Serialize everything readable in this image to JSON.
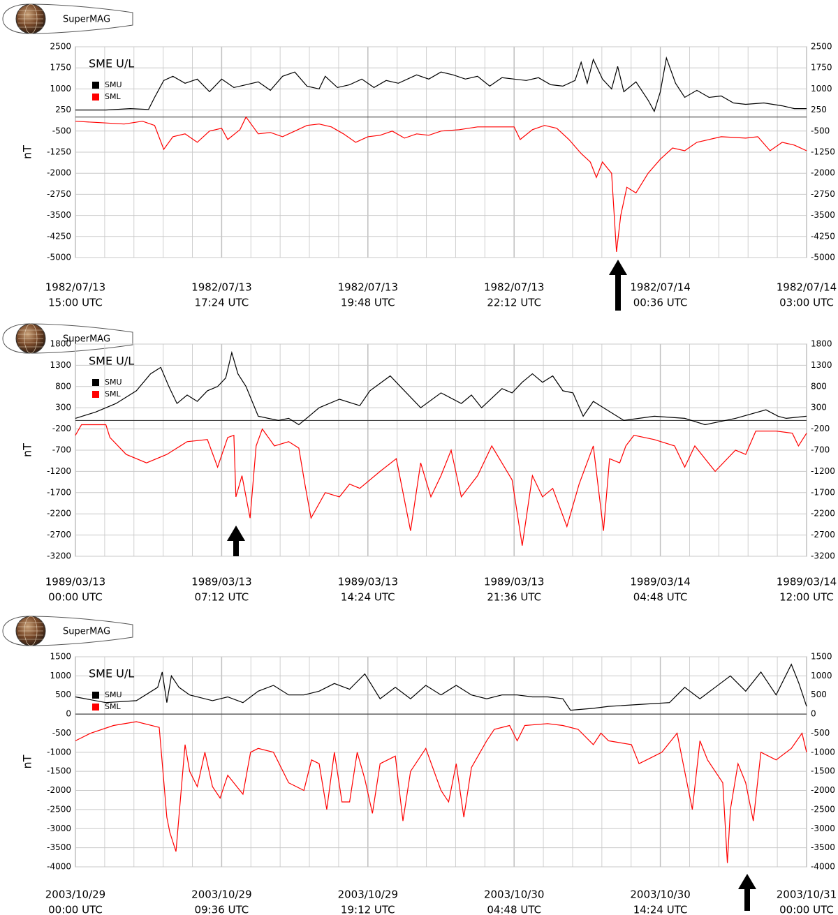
{
  "chart_data": [
    {
      "type": "line",
      "logo_text": "SuperMAG",
      "title": "SME U/L",
      "ylabel": "nT",
      "grid": true,
      "xlim": [
        0,
        12
      ],
      "xticks": [
        {
          "value": 0,
          "label": [
            "1982/07/13",
            "15:00 UTC"
          ]
        },
        {
          "value": 2.4,
          "label": [
            "1982/07/13",
            "17:24 UTC"
          ]
        },
        {
          "value": 4.8,
          "label": [
            "1982/07/13",
            "19:48 UTC"
          ]
        },
        {
          "value": 7.2,
          "label": [
            "1982/07/13",
            "22:12 UTC"
          ]
        },
        {
          "value": 9.6,
          "label": [
            "1982/07/14",
            "00:36 UTC"
          ]
        },
        {
          "value": 12,
          "label": [
            "1982/07/14",
            "03:00 UTC"
          ]
        }
      ],
      "ylim": [
        -5000,
        2500
      ],
      "yticks": [
        2500,
        1750,
        1000,
        250,
        -500,
        -1250,
        -2000,
        -2750,
        -3500,
        -4250,
        -5000
      ],
      "series": [
        {
          "name": "SMU",
          "color": "#000000",
          "x": [
            0,
            0.5,
            0.9,
            1.2,
            1.3,
            1.45,
            1.6,
            1.8,
            2.0,
            2.2,
            2.4,
            2.6,
            2.8,
            3.0,
            3.2,
            3.4,
            3.6,
            3.8,
            4.0,
            4.1,
            4.3,
            4.5,
            4.7,
            4.9,
            5.1,
            5.3,
            5.6,
            5.8,
            6.0,
            6.2,
            6.4,
            6.6,
            6.8,
            7.0,
            7.2,
            7.4,
            7.6,
            7.8,
            8.0,
            8.2,
            8.3,
            8.4,
            8.5,
            8.65,
            8.8,
            8.9,
            9.0,
            9.2,
            9.4,
            9.5,
            9.6,
            9.7,
            9.85,
            10.0,
            10.2,
            10.4,
            10.6,
            10.8,
            11.0,
            11.3,
            11.6,
            11.8,
            12.0
          ],
          "values": [
            250,
            250,
            300,
            270,
            700,
            1300,
            1450,
            1200,
            1350,
            900,
            1350,
            1050,
            1150,
            1250,
            950,
            1450,
            1600,
            1100,
            1000,
            1450,
            1050,
            1150,
            1350,
            1050,
            1300,
            1200,
            1500,
            1350,
            1600,
            1500,
            1350,
            1450,
            1100,
            1400,
            1350,
            1300,
            1400,
            1150,
            1100,
            1300,
            1950,
            1200,
            2050,
            1350,
            1000,
            1800,
            900,
            1250,
            600,
            200,
            900,
            2100,
            1200,
            700,
            950,
            700,
            750,
            500,
            450,
            500,
            400,
            300,
            300
          ]
        },
        {
          "name": "SML",
          "color": "#ff0000",
          "x": [
            0,
            0.4,
            0.8,
            1.1,
            1.3,
            1.45,
            1.6,
            1.8,
            2.0,
            2.2,
            2.4,
            2.5,
            2.7,
            2.8,
            3.0,
            3.2,
            3.4,
            3.6,
            3.8,
            4.0,
            4.2,
            4.4,
            4.6,
            4.8,
            5.0,
            5.2,
            5.4,
            5.6,
            5.8,
            6.0,
            6.3,
            6.6,
            6.9,
            7.2,
            7.3,
            7.5,
            7.7,
            7.9,
            8.1,
            8.3,
            8.45,
            8.55,
            8.65,
            8.8,
            8.88,
            8.95,
            9.05,
            9.2,
            9.4,
            9.6,
            9.8,
            10.0,
            10.2,
            10.4,
            10.6,
            11.0,
            11.2,
            11.4,
            11.6,
            11.8,
            12.0
          ],
          "values": [
            -150,
            -200,
            -250,
            -150,
            -300,
            -1150,
            -700,
            -600,
            -900,
            -500,
            -400,
            -800,
            -450,
            0,
            -600,
            -550,
            -700,
            -500,
            -300,
            -250,
            -350,
            -600,
            -900,
            -700,
            -650,
            -500,
            -750,
            -600,
            -650,
            -500,
            -450,
            -350,
            -350,
            -350,
            -800,
            -450,
            -300,
            -400,
            -800,
            -1300,
            -1600,
            -2150,
            -1600,
            -2000,
            -4800,
            -3500,
            -2500,
            -2700,
            -2000,
            -1500,
            -1100,
            -1200,
            -900,
            -800,
            -700,
            -750,
            -700,
            -1200,
            -900,
            -1000,
            -1200
          ]
        }
      ]
    },
    {
      "type": "line",
      "logo_text": "SuperMAG",
      "title": "SME U/L",
      "ylabel": "nT",
      "grid": true,
      "xlim": [
        0,
        36
      ],
      "xticks": [
        {
          "value": 0,
          "label": [
            "1989/03/13",
            "00:00 UTC"
          ]
        },
        {
          "value": 7.2,
          "label": [
            "1989/03/13",
            "07:12 UTC"
          ]
        },
        {
          "value": 14.4,
          "label": [
            "1989/03/13",
            "14:24 UTC"
          ]
        },
        {
          "value": 21.6,
          "label": [
            "1989/03/13",
            "21:36 UTC"
          ]
        },
        {
          "value": 28.8,
          "label": [
            "1989/03/14",
            "04:48 UTC"
          ]
        },
        {
          "value": 36,
          "label": [
            "1989/03/14",
            "12:00 UTC"
          ]
        }
      ],
      "ylim": [
        -3200,
        1800
      ],
      "yticks": [
        1800,
        1300,
        800,
        300,
        -200,
        -700,
        -1200,
        -1700,
        -2200,
        -2700,
        -3200
      ],
      "series": [
        {
          "name": "SMU",
          "color": "#000000",
          "x": [
            0,
            1,
            2,
            3,
            3.7,
            4.2,
            4.6,
            5,
            5.5,
            6,
            6.5,
            7,
            7.4,
            7.7,
            8,
            8.4,
            9,
            10,
            10.5,
            11,
            11.5,
            12,
            13,
            14,
            14.5,
            15.5,
            16,
            17,
            18,
            19,
            19.5,
            20,
            21,
            21.5,
            22,
            22.5,
            23,
            23.5,
            24,
            24.5,
            25,
            25.5,
            26,
            27,
            28.5,
            30,
            31,
            32.5,
            34,
            34.6,
            35,
            36
          ],
          "values": [
            50,
            200,
            400,
            700,
            1100,
            1250,
            800,
            400,
            600,
            450,
            700,
            800,
            1000,
            1600,
            1100,
            800,
            100,
            0,
            50,
            -100,
            100,
            300,
            500,
            350,
            700,
            1050,
            800,
            300,
            650,
            400,
            600,
            300,
            750,
            650,
            900,
            1100,
            900,
            1050,
            700,
            650,
            100,
            450,
            300,
            0,
            100,
            50,
            -100,
            50,
            250,
            100,
            50,
            100
          ]
        },
        {
          "name": "SML",
          "color": "#ff0000",
          "x": [
            0,
            0.3,
            1.5,
            1.7,
            2.5,
            3.5,
            4.5,
            5.5,
            6.5,
            7,
            7.5,
            7.8,
            7.9,
            8.2,
            8.6,
            8.9,
            9.2,
            9.8,
            10.5,
            11,
            11.3,
            11.6,
            12.3,
            13,
            13.5,
            14,
            15,
            15.8,
            16.5,
            17,
            17.5,
            18,
            18.5,
            19,
            19.8,
            20.5,
            21.5,
            22,
            22.5,
            23,
            23.5,
            24.2,
            24.8,
            25.5,
            26,
            26.3,
            26.8,
            27.1,
            27.5,
            28.5,
            29.5,
            30,
            30.5,
            31,
            31.5,
            32.5,
            33,
            33.5,
            34.5,
            35.3,
            35.6,
            36
          ],
          "values": [
            -350,
            -100,
            -100,
            -400,
            -800,
            -1000,
            -800,
            -500,
            -450,
            -1100,
            -400,
            -350,
            -1800,
            -1300,
            -2300,
            -600,
            -200,
            -600,
            -500,
            -650,
            -1500,
            -2300,
            -1700,
            -1800,
            -1500,
            -1600,
            -1200,
            -900,
            -2600,
            -1000,
            -1800,
            -1300,
            -700,
            -1800,
            -1300,
            -600,
            -1400,
            -2950,
            -1300,
            -1800,
            -1600,
            -2500,
            -1500,
            -600,
            -2600,
            -900,
            -1000,
            -600,
            -350,
            -450,
            -600,
            -1100,
            -600,
            -900,
            -1200,
            -700,
            -800,
            -250,
            -250,
            -300,
            -600,
            -300
          ]
        }
      ]
    },
    {
      "type": "line",
      "logo_text": "SuperMAG",
      "title": "SME U/L",
      "ylabel": "nT",
      "grid": true,
      "xlim": [
        0,
        48
      ],
      "xticks": [
        {
          "value": 0,
          "label": [
            "2003/10/29",
            "00:00 UTC"
          ]
        },
        {
          "value": 9.6,
          "label": [
            "2003/10/29",
            "09:36 UTC"
          ]
        },
        {
          "value": 19.2,
          "label": [
            "2003/10/29",
            "19:12 UTC"
          ]
        },
        {
          "value": 28.8,
          "label": [
            "2003/10/30",
            "04:48 UTC"
          ]
        },
        {
          "value": 38.4,
          "label": [
            "2003/10/30",
            "14:24 UTC"
          ]
        },
        {
          "value": 48,
          "label": [
            "2003/10/31",
            "00:00 UTC"
          ]
        }
      ],
      "ylim": [
        -4000,
        1500
      ],
      "yticks": [
        1500,
        1000,
        500,
        0,
        -500,
        -1000,
        -1500,
        -2000,
        -2500,
        -3000,
        -3500,
        -4000
      ],
      "series": [
        {
          "name": "SMU",
          "color": "#000000",
          "x": [
            0,
            2,
            4,
            5.4,
            5.7,
            6,
            6.3,
            6.8,
            7.5,
            9,
            10,
            11,
            12,
            13,
            14,
            15,
            16,
            17,
            18,
            19,
            20,
            21,
            22,
            23,
            24,
            25,
            26,
            27,
            28,
            29,
            30,
            31,
            32,
            32.5,
            34,
            35,
            37,
            39,
            40,
            41,
            42,
            43,
            44,
            45,
            46,
            47,
            47.5,
            48
          ],
          "values": [
            450,
            300,
            350,
            700,
            1100,
            300,
            1000,
            700,
            500,
            350,
            450,
            300,
            600,
            750,
            500,
            500,
            600,
            800,
            650,
            1050,
            400,
            700,
            400,
            750,
            500,
            750,
            500,
            400,
            500,
            500,
            450,
            450,
            400,
            100,
            150,
            200,
            250,
            300,
            700,
            400,
            700,
            1000,
            600,
            1100,
            500,
            1300,
            800,
            200
          ]
        },
        {
          "name": "SML",
          "color": "#ff0000",
          "x": [
            0,
            1,
            2.5,
            4,
            5.5,
            6,
            6.2,
            6.6,
            7.2,
            7.5,
            8,
            8.5,
            9,
            9.5,
            10,
            11,
            11.5,
            12,
            13,
            14,
            15,
            15.5,
            16,
            16.5,
            17,
            17.5,
            18,
            18.5,
            19,
            19.5,
            20,
            21,
            21.5,
            22,
            23,
            24,
            24.5,
            25,
            25.5,
            26,
            27,
            27.5,
            28.5,
            29,
            29.5,
            31,
            32,
            33,
            34,
            34.5,
            35,
            36.5,
            37,
            38,
            38.5,
            39.5,
            40,
            40.5,
            41,
            41.5,
            42,
            42.5,
            42.8,
            43,
            43.5,
            44,
            44.5,
            45,
            46,
            47,
            47.7,
            48
          ],
          "values": [
            -700,
            -500,
            -300,
            -200,
            -350,
            -2700,
            -3100,
            -3600,
            -800,
            -1500,
            -1900,
            -1000,
            -1900,
            -2200,
            -1600,
            -2100,
            -1000,
            -900,
            -1000,
            -1800,
            -2000,
            -1200,
            -1300,
            -2500,
            -1000,
            -2300,
            -2300,
            -1000,
            -1700,
            -2600,
            -1300,
            -1100,
            -2800,
            -1500,
            -900,
            -2000,
            -2300,
            -1300,
            -2700,
            -1400,
            -700,
            -400,
            -300,
            -700,
            -300,
            -250,
            -300,
            -400,
            -800,
            -500,
            -700,
            -800,
            -1300,
            -1100,
            -1000,
            -500,
            -1500,
            -2500,
            -700,
            -1200,
            -1500,
            -1800,
            -3900,
            -2500,
            -1300,
            -1800,
            -2800,
            -1000,
            -1200,
            -900,
            -500,
            -1000
          ]
        }
      ]
    }
  ]
}
